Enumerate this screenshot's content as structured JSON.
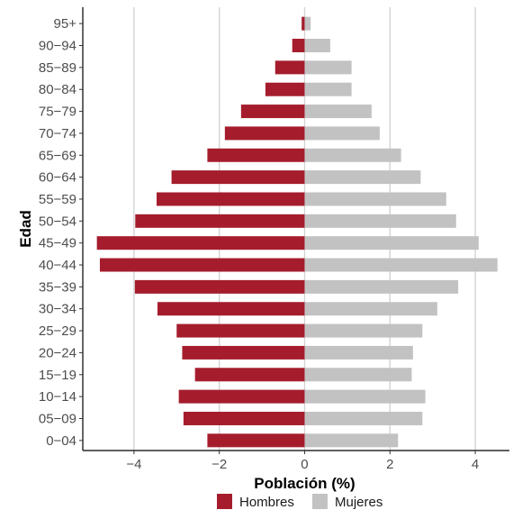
{
  "chart_data": {
    "type": "bar",
    "orientation": "horizontal",
    "xlabel": "Población (%)",
    "ylabel": "Edad",
    "xlim": [
      -5.2,
      4.8
    ],
    "xticks": [
      -4,
      -2,
      0,
      2,
      4
    ],
    "xtick_labels": [
      "−4",
      "−2",
      "0",
      "2",
      "4"
    ],
    "grid": "vertical major lines",
    "legend_position": "bottom",
    "categories": [
      "0−04",
      "05−09",
      "10−14",
      "15−19",
      "20−24",
      "25−29",
      "30−34",
      "35−39",
      "40−44",
      "45−49",
      "50−54",
      "55−59",
      "60−64",
      "65−69",
      "70−74",
      "75−79",
      "80−84",
      "85−89",
      "90−94",
      "95+"
    ],
    "series": [
      {
        "name": "Hombres",
        "color": "#a51d2d",
        "values": [
          -2.28,
          -2.84,
          -2.95,
          -2.57,
          -2.87,
          -3.0,
          -3.45,
          -3.98,
          -4.8,
          -4.87,
          -3.97,
          -3.47,
          -3.12,
          -2.28,
          -1.87,
          -1.49,
          -0.92,
          -0.69,
          -0.29,
          -0.07
        ]
      },
      {
        "name": "Mujeres",
        "color": "#c2c2c2",
        "values": [
          2.19,
          2.76,
          2.83,
          2.51,
          2.54,
          2.76,
          3.11,
          3.6,
          4.52,
          4.08,
          3.55,
          3.32,
          2.72,
          2.26,
          1.76,
          1.57,
          1.1,
          1.1,
          0.6,
          0.14
        ]
      }
    ]
  }
}
